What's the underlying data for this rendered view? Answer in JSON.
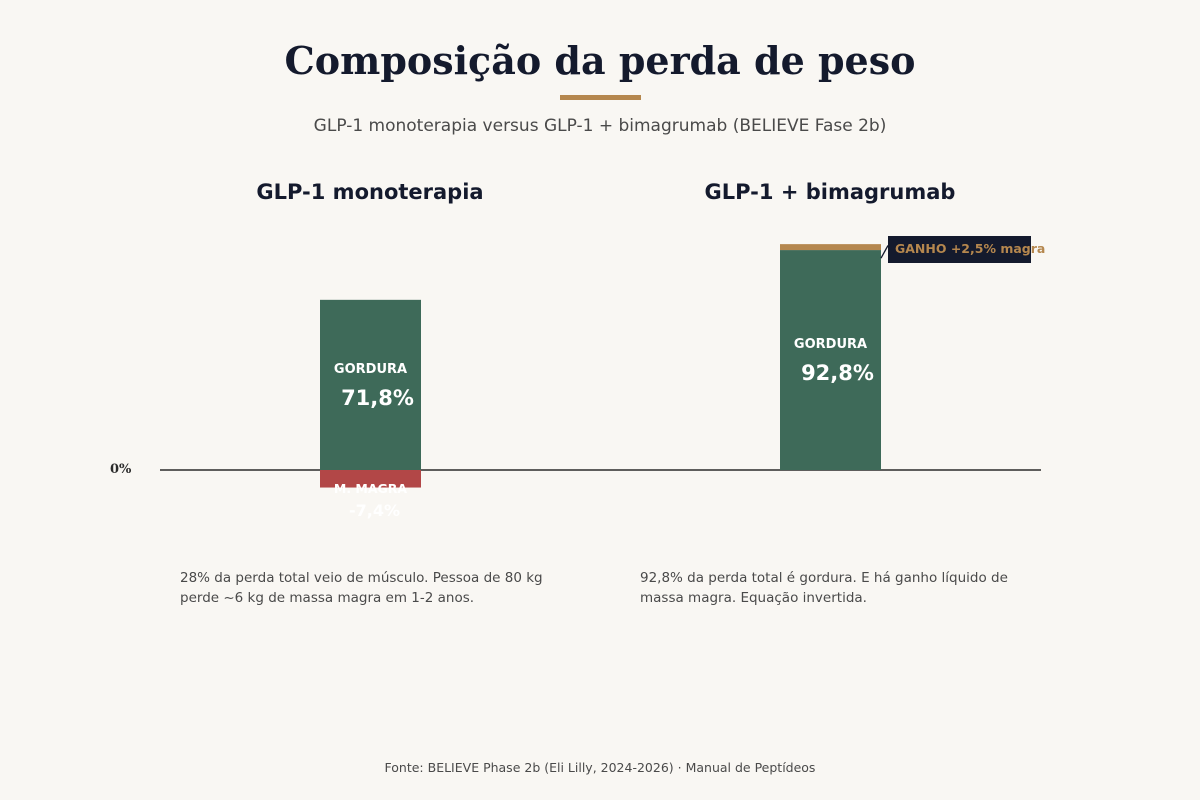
{
  "title": "Composição da perda de peso",
  "subtitle": "GLP-1 monoterapia versus GLP-1 + bimagrumab (BELIEVE Fase 2b)",
  "source": "Fonte: BELIEVE Phase 2b (Eli Lilly, 2024-2026) · Manual de Peptídeos",
  "colors": {
    "background": "#f9f7f3",
    "fat": "#3e6a59",
    "lean_loss": "#b24747",
    "lean_gain": "#b5874e",
    "annotation_bg": "#141a2d",
    "text_dark": "#141a2d",
    "accent": "#b5874e"
  },
  "chart_data": {
    "type": "bar",
    "stacked": true,
    "baseline_label": "0%",
    "panels": [
      {
        "title": "GLP-1 monoterapia",
        "note": "28% da perda total veio de músculo. Pessoa de 80 kg perde ~6 kg de massa magra em 1-2 anos.",
        "segments": [
          {
            "name": "GORDURA",
            "value": 71.8,
            "label": "71,8%",
            "kind": "fat"
          },
          {
            "name": "M. MAGRA",
            "value": -7.4,
            "label": "-7,4%",
            "kind": "lean_loss"
          }
        ]
      },
      {
        "title": "GLP-1 + bimagrumab",
        "note": "92,8% da perda total é gordura. E há ganho líquido de massa magra. Equação invertida.",
        "segments": [
          {
            "name": "GORDURA",
            "value": 92.8,
            "label": "92,8%",
            "kind": "fat"
          },
          {
            "name": "",
            "value": 2.5,
            "label": "",
            "kind": "lean_gain"
          }
        ],
        "annotation": "GANHO +2,5% magra"
      }
    ]
  }
}
